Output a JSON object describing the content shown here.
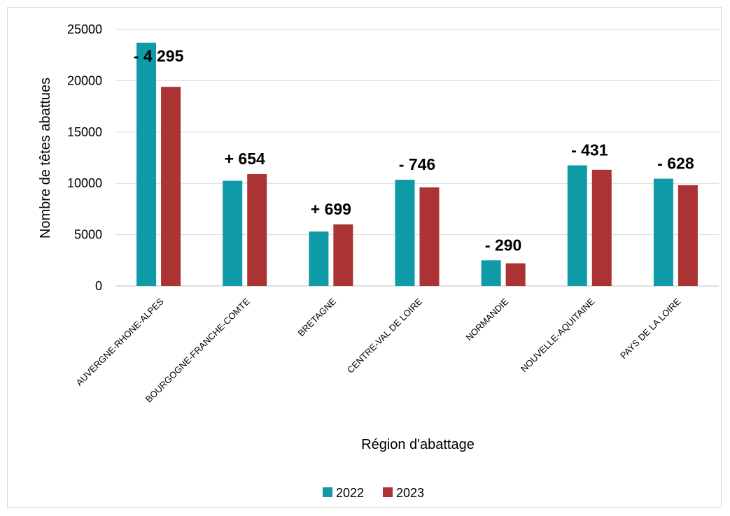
{
  "chart_data": {
    "type": "bar",
    "title": "",
    "xlabel": "Région d'abattage",
    "ylabel": "Nombre de têtes abattues",
    "ylim": [
      0,
      25000
    ],
    "yticks": [
      "0",
      "5000",
      "10000",
      "15000",
      "20000",
      "25000"
    ],
    "grid": true,
    "legend_position": "bottom",
    "categories": [
      "AUVERGNE-RHONE-ALPES",
      "BOURGOGNE-FRANCHE-COMTE",
      "BRETAGNE",
      "CENTRE-VAL DE LOIRE",
      "NORMANDIE",
      "NOUVELLE-AQUITAINE",
      "PAYS DE LA LOIRE"
    ],
    "series": [
      {
        "name": "2022",
        "color": "#0f9aa8",
        "values": [
          23700,
          10250,
          5300,
          10350,
          2500,
          11750,
          10450
        ]
      },
      {
        "name": "2023",
        "color": "#ab3334",
        "values": [
          19400,
          10900,
          6000,
          9600,
          2210,
          11320,
          9820
        ]
      }
    ],
    "annotations": [
      "- 4 295",
      "+ 654",
      "+ 699",
      "- 746",
      "- 290",
      "- 431",
      "- 628"
    ]
  }
}
